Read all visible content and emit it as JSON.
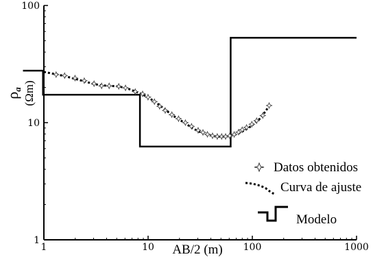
{
  "chart_data": {
    "type": "line",
    "xscale": "log",
    "yscale": "log",
    "xlim": [
      1,
      1000
    ],
    "ylim": [
      1,
      100
    ],
    "xlabel": "AB/2 (m)",
    "ylabel_symbol": "ρ",
    "ylabel_subscript": "a",
    "ylabel_unit": "(Ωm)",
    "x_ticks": [
      {
        "value": 1,
        "label": "1"
      },
      {
        "value": 10,
        "label": "10"
      },
      {
        "value": 100,
        "label": "100"
      },
      {
        "value": 1000,
        "label": "1000"
      }
    ],
    "y_ticks": [
      {
        "value": 1,
        "label": "1"
      },
      {
        "value": 10,
        "label": "10"
      },
      {
        "value": 100,
        "label": "100"
      }
    ],
    "grid": false,
    "legend_position": "bottom-right",
    "series": [
      {
        "name": "Datos obtenidos",
        "kind": "scatter",
        "marker": "star",
        "x": [
          1.31,
          1.58,
          1.99,
          2.44,
          3.03,
          3.58,
          4.23,
          5.23,
          6.07,
          7.53,
          8.86,
          9.98,
          11.5,
          12.9,
          14.6,
          16.9,
          19.6,
          22.8,
          26.1,
          30.2,
          33.6,
          37.1,
          41.5,
          46.1,
          50.8,
          55.4,
          60.7,
          67.0,
          73.8,
          80.0,
          88.0,
          99.0,
          110.0,
          126.0,
          145.0
        ],
        "y": [
          25.7,
          25.2,
          24.0,
          22.8,
          21.5,
          20.6,
          20.6,
          20.4,
          19.8,
          18.4,
          17.6,
          16.5,
          15.1,
          13.8,
          12.7,
          11.7,
          10.8,
          10.0,
          9.3,
          8.6,
          8.25,
          7.95,
          7.73,
          7.62,
          7.62,
          7.62,
          7.73,
          7.93,
          8.3,
          8.7,
          9.1,
          9.7,
          10.4,
          11.5,
          14.0
        ]
      },
      {
        "name": "Curva de ajuste",
        "kind": "line",
        "style": "dotted",
        "x": [
          1.0,
          1.3,
          1.6,
          2.0,
          2.5,
          3.0,
          3.6,
          4.3,
          5.2,
          6.2,
          7.5,
          8.9,
          10.0,
          11.5,
          13.0,
          14.8,
          17.0,
          20.0,
          23.0,
          26.5,
          30.5,
          35.0,
          40.0,
          46.0,
          52.0,
          58.0,
          65.0,
          73.0,
          82.0,
          92.0,
          104.0,
          118.0,
          134.0,
          150.0
        ],
        "y": [
          27.1,
          25.9,
          24.9,
          23.6,
          22.4,
          21.4,
          20.8,
          20.6,
          20.4,
          19.7,
          18.5,
          17.4,
          16.4,
          15.2,
          14.0,
          12.8,
          11.6,
          10.6,
          9.8,
          9.0,
          8.4,
          8.0,
          7.75,
          7.6,
          7.6,
          7.65,
          7.8,
          8.05,
          8.5,
          9.0,
          9.8,
          10.8,
          12.5,
          14.6
        ]
      },
      {
        "name": "Modelo",
        "kind": "step",
        "style": "solid",
        "x": [
          0.63,
          0.98,
          0.98,
          8.35,
          8.35,
          62.0,
          62.0,
          1000.0
        ],
        "y": [
          27.8,
          27.8,
          17.3,
          17.3,
          6.25,
          6.25,
          53.0,
          53.0
        ]
      }
    ]
  }
}
